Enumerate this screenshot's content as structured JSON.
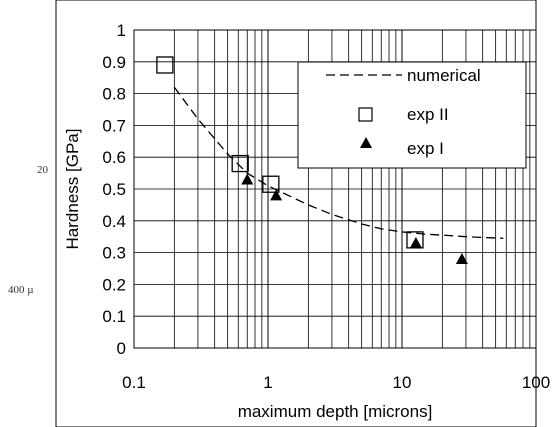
{
  "stray_text": [
    "20",
    "400 µ"
  ],
  "chart_data": {
    "type": "scatter",
    "title": "",
    "xlabel": "maximum depth [microns]",
    "ylabel": "Hardness [GPa]",
    "xscale": "log",
    "xlim": [
      0.1,
      100
    ],
    "ylim": [
      0,
      1
    ],
    "xticks": [
      "0.1",
      "1",
      "10",
      "100"
    ],
    "yticks": [
      "0",
      "0.1",
      "0.2",
      "0.3",
      "0.4",
      "0.5",
      "0.6",
      "0.7",
      "0.8",
      "0.9",
      "1"
    ],
    "grid": true,
    "legend_position": "top-right",
    "series": [
      {
        "name": "numerical",
        "kind": "line",
        "style": "dashed",
        "x": [
          0.2,
          0.3,
          0.5,
          0.7,
          1.0,
          1.5,
          2,
          3,
          5,
          7,
          10,
          15,
          20,
          30,
          57
        ],
        "y": [
          0.82,
          0.72,
          0.61,
          0.55,
          0.51,
          0.475,
          0.45,
          0.42,
          0.39,
          0.375,
          0.365,
          0.358,
          0.355,
          0.35,
          0.345
        ]
      },
      {
        "name": "exp II",
        "kind": "marker",
        "marker": "open-square",
        "x": [
          0.17,
          0.62,
          1.05,
          12.5
        ],
        "y": [
          0.89,
          0.58,
          0.515,
          0.34
        ]
      },
      {
        "name": "exp I",
        "kind": "marker",
        "marker": "filled-triangle",
        "x": [
          0.7,
          1.15,
          12.7,
          28
        ],
        "y": [
          0.53,
          0.48,
          0.33,
          0.28
        ]
      }
    ]
  }
}
